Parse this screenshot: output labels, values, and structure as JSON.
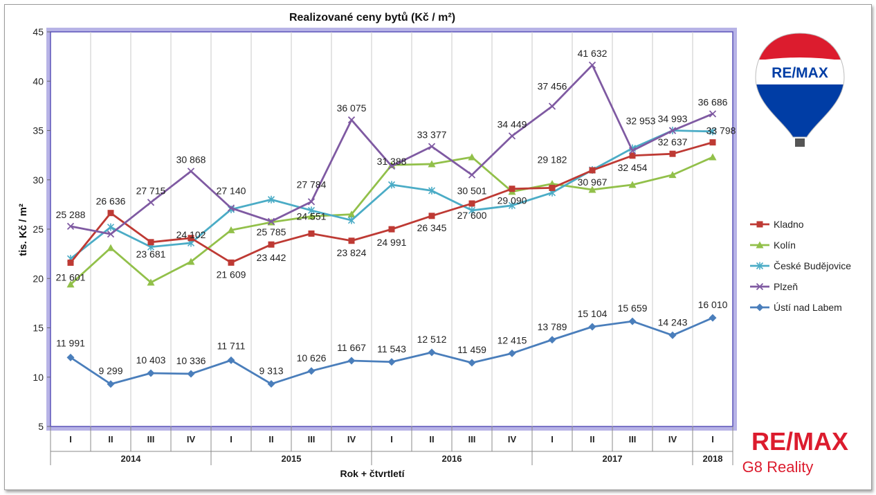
{
  "chart_data": {
    "type": "line",
    "title": "Realizované ceny bytů (Kč / m²)",
    "ylabel": "tis. Kč / m²",
    "xlabel": "Rok + čtvrtletí",
    "ylim": [
      5,
      45
    ],
    "yticks": [
      5,
      10,
      15,
      20,
      25,
      30,
      35,
      40,
      45
    ],
    "grid": "vertical",
    "legend_position": "right",
    "quarters": [
      "I",
      "II",
      "III",
      "IV",
      "I",
      "II",
      "III",
      "IV",
      "I",
      "II",
      "III",
      "IV",
      "I",
      "II",
      "III",
      "IV",
      "I"
    ],
    "years": [
      {
        "label": "2014",
        "count": 4
      },
      {
        "label": "2015",
        "count": 4
      },
      {
        "label": "2016",
        "count": 4
      },
      {
        "label": "2017",
        "count": 4
      },
      {
        "label": "2018",
        "count": 1
      }
    ],
    "series": [
      {
        "name": "Kladno",
        "color": "#be3a34",
        "marker": "square",
        "values": [
          21.601,
          26.636,
          23.681,
          24.102,
          21.609,
          23.442,
          24.551,
          23.824,
          24.991,
          26.345,
          27.6,
          29.09,
          29.182,
          30.967,
          32.454,
          32.637,
          33.798
        ],
        "labels": [
          "21 601",
          "26 636",
          "23 681",
          "24 102",
          "21 609",
          "23 442",
          "24 551",
          "23 824",
          "24 991",
          "26 345",
          "27 600",
          "29 090",
          "29 182",
          "30 967",
          "32 454",
          "32 637",
          "33 798"
        ]
      },
      {
        "name": "Kolín",
        "color": "#92c04a",
        "marker": "triangle",
        "values": [
          19.4,
          23.1,
          19.6,
          21.7,
          24.9,
          25.7,
          26.3,
          26.5,
          31.5,
          31.6,
          32.3,
          28.8,
          29.6,
          29.0,
          29.5,
          30.5,
          32.3
        ],
        "labels": []
      },
      {
        "name": "České Budějovice",
        "color": "#4bacc6",
        "marker": "star",
        "values": [
          22.0,
          25.2,
          23.2,
          23.6,
          27.0,
          28.0,
          26.9,
          25.9,
          29.5,
          28.9,
          26.9,
          27.4,
          28.7,
          31.0,
          33.2,
          35.0,
          34.9
        ],
        "labels": []
      },
      {
        "name": "Plzeň",
        "color": "#7f5aa2",
        "marker": "x",
        "values": [
          25.288,
          24.5,
          27.715,
          30.868,
          27.14,
          25.785,
          27.784,
          36.075,
          31.388,
          33.377,
          30.501,
          34.449,
          37.456,
          41.632,
          32.953,
          34.993,
          36.686
        ],
        "labels": [
          "25 288",
          "",
          "27 715",
          "30 868",
          "27 140",
          "25 785",
          "27 784",
          "36 075",
          "31 388",
          "33 377",
          "30 501",
          "34 449",
          "37 456",
          "41 632",
          "32 953",
          "34 993",
          "36 686"
        ]
      },
      {
        "name": "Ústí nad Labem",
        "color": "#4a7ebb",
        "marker": "diamond",
        "values": [
          11.991,
          9.299,
          10.403,
          10.336,
          11.711,
          9.313,
          10.626,
          11.667,
          11.543,
          12.512,
          11.459,
          12.415,
          13.789,
          15.104,
          15.659,
          14.243,
          16.01
        ],
        "labels": [
          "11 991",
          "9 299",
          "10 403",
          "10 336",
          "11 711",
          "9 313",
          "10 626",
          "11 667",
          "11 543",
          "12 512",
          "11 459",
          "12 415",
          "13 789",
          "15 104",
          "15 659",
          "14 243",
          "16 010"
        ]
      }
    ]
  },
  "logo_top": {
    "text": "RE/MAX",
    "colors": [
      "#dc1c2e",
      "#ffffff",
      "#003da5"
    ]
  },
  "logo_bottom": {
    "brand": "RE/MAX",
    "sub": "G8 Reality",
    "brand_color": "#dc1c2e",
    "sub_color": "#dc1c2e"
  }
}
